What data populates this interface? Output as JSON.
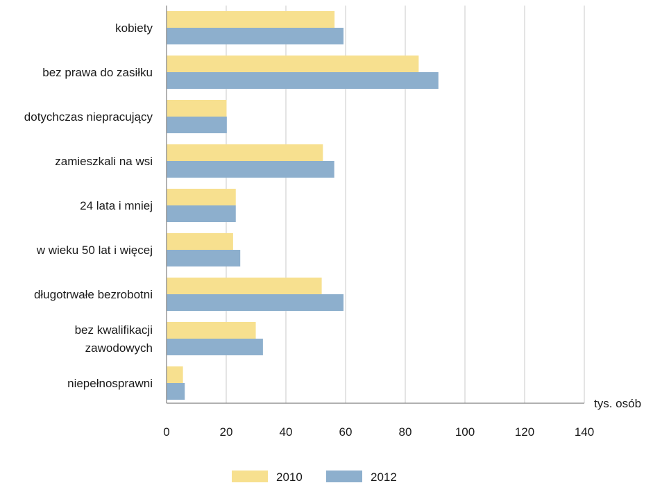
{
  "chart_data": {
    "type": "bar",
    "orientation": "horizontal",
    "title": "",
    "xlabel": "tys. osób",
    "ylabel": "",
    "xlim": [
      0,
      140
    ],
    "xticks": [
      0,
      20,
      40,
      60,
      80,
      100,
      120,
      140
    ],
    "grid": true,
    "legend_position": "bottom",
    "categories": [
      [
        "kobiety"
      ],
      [
        "bez prawa do zasiłku"
      ],
      [
        "dotychczas niepracujący"
      ],
      [
        "zamieszkali na wsi"
      ],
      [
        "24 lata i mniej"
      ],
      [
        "w wieku 50 lat i więcej"
      ],
      [
        "długotrwałe bezrobotni"
      ],
      [
        "bez kwalifikacji",
        "zawodowych"
      ],
      [
        "niepełnosprawni"
      ]
    ],
    "series": [
      {
        "name": "2010",
        "color": "#f7e08f",
        "values": [
          56.3,
          84.5,
          20.1,
          52.4,
          23.2,
          22.3,
          52.0,
          29.9,
          5.5
        ]
      },
      {
        "name": "2012",
        "color": "#8dafcd",
        "values": [
          59.3,
          91.1,
          20.2,
          56.2,
          23.2,
          24.7,
          59.3,
          32.3,
          6.1
        ]
      }
    ]
  }
}
